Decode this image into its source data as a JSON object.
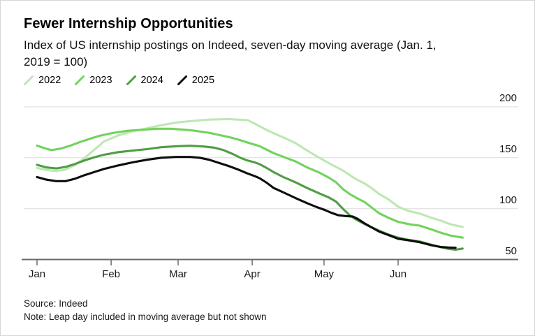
{
  "header": {
    "title": "Fewer Internship Opportunities",
    "subtitle": "Index of US internship postings on Indeed, seven-day moving average (Jan. 1,\n2019 = 100)"
  },
  "footer": {
    "source": "Source: Indeed",
    "note": "Note: Leap day included in moving average but not shown"
  },
  "colors": {
    "grid": "#dbdbdb",
    "axis": "#6b6b6b",
    "background": "#ffffff"
  },
  "chart_data": {
    "type": "line",
    "title": "Fewer Internship Opportunities",
    "subtitle": "Index of US internship postings on Indeed, seven-day moving average (Jan. 1, 2019 = 100)",
    "x_unit": "day of year (Jan 1 = 0)",
    "x_axis": {
      "tick_labels": [
        "Jan",
        "Feb",
        "Mar",
        "Apr",
        "May",
        "Jun"
      ],
      "tick_days": [
        0,
        31,
        59,
        90,
        120,
        151
      ],
      "range_days": [
        0,
        178
      ]
    },
    "y_axis": {
      "tick_labels": [
        "200",
        "150",
        "100",
        "50"
      ],
      "tick_values": [
        200,
        150,
        100,
        50
      ],
      "range": [
        50,
        215
      ],
      "grid_values": [
        200,
        150,
        100
      ]
    },
    "legend_position": "top-left",
    "grid": true,
    "series": [
      {
        "name": "2022",
        "color": "#bce8b2",
        "points": [
          [
            0,
            140
          ],
          [
            4,
            138
          ],
          [
            8,
            137
          ],
          [
            12,
            138.5
          ],
          [
            16,
            143
          ],
          [
            20,
            150
          ],
          [
            24,
            158
          ],
          [
            28,
            166
          ],
          [
            34,
            172
          ],
          [
            40,
            176
          ],
          [
            46,
            179
          ],
          [
            52,
            182
          ],
          [
            58,
            184.5
          ],
          [
            64,
            186
          ],
          [
            72,
            187.5
          ],
          [
            80,
            188
          ],
          [
            88,
            187
          ],
          [
            91,
            183.5
          ],
          [
            95,
            178.5
          ],
          [
            99,
            174
          ],
          [
            103,
            170
          ],
          [
            108,
            164.5
          ],
          [
            113,
            157
          ],
          [
            118,
            150
          ],
          [
            123,
            143.5
          ],
          [
            128,
            137.3
          ],
          [
            133,
            129.5
          ],
          [
            137,
            124.7
          ],
          [
            140,
            120
          ],
          [
            143,
            114.5
          ],
          [
            147,
            109
          ],
          [
            151,
            102
          ],
          [
            155,
            98
          ],
          [
            160,
            95.2
          ],
          [
            165,
            91
          ],
          [
            169,
            88.1
          ],
          [
            173,
            84.5
          ],
          [
            178,
            82
          ]
        ]
      },
      {
        "name": "2023",
        "color": "#71d35c",
        "points": [
          [
            0,
            162
          ],
          [
            3,
            159.5
          ],
          [
            6,
            157.5
          ],
          [
            10,
            159
          ],
          [
            14,
            162
          ],
          [
            18,
            165.5
          ],
          [
            22,
            168.5
          ],
          [
            26,
            171.5
          ],
          [
            32,
            174.5
          ],
          [
            38,
            176.5
          ],
          [
            44,
            177.5
          ],
          [
            50,
            178.5
          ],
          [
            56,
            178.5
          ],
          [
            62,
            177.5
          ],
          [
            66,
            176.5
          ],
          [
            72,
            174.5
          ],
          [
            76,
            172.5
          ],
          [
            80,
            170.5
          ],
          [
            84,
            168
          ],
          [
            88,
            165
          ],
          [
            93,
            161.5
          ],
          [
            96,
            158
          ],
          [
            99,
            154.5
          ],
          [
            104,
            150
          ],
          [
            108,
            146.5
          ],
          [
            113,
            140.5
          ],
          [
            118,
            135.5
          ],
          [
            122,
            130.5
          ],
          [
            125,
            126
          ],
          [
            128,
            119
          ],
          [
            131,
            114
          ],
          [
            134,
            110
          ],
          [
            137,
            106.4
          ],
          [
            140,
            101
          ],
          [
            143,
            95.5
          ],
          [
            147,
            91
          ],
          [
            151,
            87
          ],
          [
            156,
            84.5
          ],
          [
            160,
            83.3
          ],
          [
            165,
            79.5
          ],
          [
            169,
            76.2
          ],
          [
            173,
            73.5
          ],
          [
            178,
            71.5
          ]
        ]
      },
      {
        "name": "2024",
        "color": "#4f9e43",
        "points": [
          [
            0,
            143
          ],
          [
            4,
            140.5
          ],
          [
            8,
            139.5
          ],
          [
            12,
            141
          ],
          [
            16,
            144
          ],
          [
            20,
            147.5
          ],
          [
            24,
            150.5
          ],
          [
            28,
            153
          ],
          [
            34,
            155.5
          ],
          [
            40,
            157
          ],
          [
            46,
            158.5
          ],
          [
            52,
            160.4
          ],
          [
            58,
            161.3
          ],
          [
            64,
            161.8
          ],
          [
            70,
            161
          ],
          [
            74,
            160
          ],
          [
            78,
            157.5
          ],
          [
            82,
            153.5
          ],
          [
            85,
            150
          ],
          [
            88,
            147.3
          ],
          [
            91,
            145.5
          ],
          [
            93,
            143.8
          ],
          [
            96,
            140
          ],
          [
            99,
            135.8
          ],
          [
            103,
            131
          ],
          [
            108,
            126
          ],
          [
            113,
            120.2
          ],
          [
            118,
            115
          ],
          [
            122,
            111
          ],
          [
            125,
            107
          ],
          [
            128,
            99.6
          ],
          [
            131,
            93
          ],
          [
            134,
            88.5
          ],
          [
            137,
            84.8
          ],
          [
            140,
            81.5
          ],
          [
            143,
            78.4
          ],
          [
            147,
            74.5
          ],
          [
            151,
            71.5
          ],
          [
            155,
            69.5
          ],
          [
            160,
            67.8
          ],
          [
            165,
            64.5
          ],
          [
            169,
            62
          ],
          [
            172,
            60.5
          ],
          [
            175,
            59.6
          ],
          [
            178,
            60.8
          ]
        ]
      },
      {
        "name": "2025",
        "color": "#0d0d0d",
        "points": [
          [
            0,
            131
          ],
          [
            4,
            128.5
          ],
          [
            8,
            127
          ],
          [
            12,
            127
          ],
          [
            16,
            129.5
          ],
          [
            20,
            133
          ],
          [
            24,
            136
          ],
          [
            28,
            139
          ],
          [
            34,
            142.5
          ],
          [
            40,
            145.5
          ],
          [
            46,
            148
          ],
          [
            52,
            150
          ],
          [
            58,
            150.8
          ],
          [
            64,
            150.8
          ],
          [
            68,
            150
          ],
          [
            72,
            148
          ],
          [
            76,
            145
          ],
          [
            80,
            142
          ],
          [
            84,
            138.5
          ],
          [
            88,
            134.6
          ],
          [
            91,
            132
          ],
          [
            93,
            130
          ],
          [
            96,
            125.5
          ],
          [
            99,
            120.2
          ],
          [
            103,
            116
          ],
          [
            108,
            110.5
          ],
          [
            113,
            105.3
          ],
          [
            117,
            101.5
          ],
          [
            120,
            99
          ],
          [
            123,
            96
          ],
          [
            126,
            93.5
          ],
          [
            129,
            92.7
          ],
          [
            132,
            92.3
          ],
          [
            134,
            90
          ],
          [
            137,
            85.5
          ],
          [
            140,
            81.5
          ],
          [
            143,
            77.5
          ],
          [
            147,
            74
          ],
          [
            151,
            70.4
          ],
          [
            155,
            69
          ],
          [
            160,
            67
          ],
          [
            165,
            64
          ],
          [
            169,
            62.3
          ],
          [
            172,
            61.8
          ],
          [
            175,
            61.5
          ]
        ]
      }
    ]
  }
}
